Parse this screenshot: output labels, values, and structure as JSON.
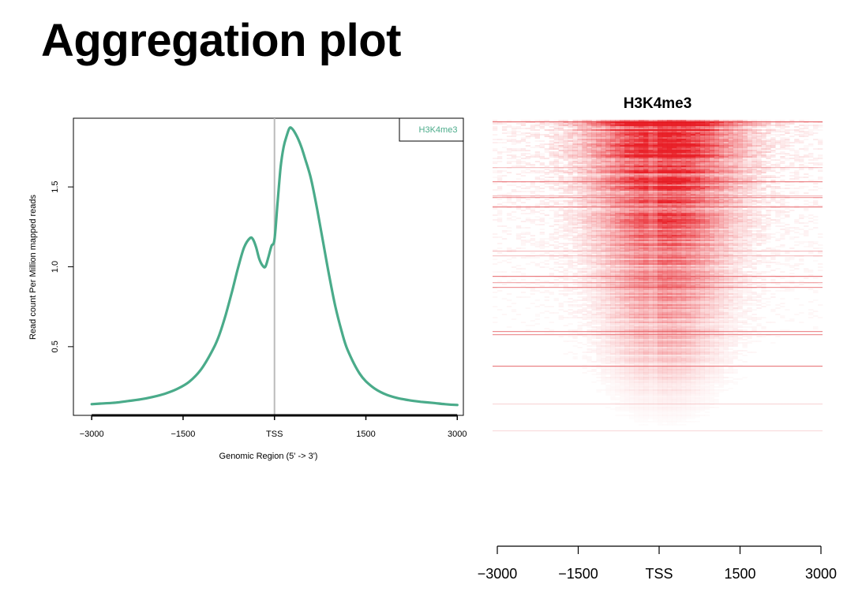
{
  "slide": {
    "title": "Aggregation plot"
  },
  "chart_data": [
    {
      "type": "line",
      "title": "",
      "xlabel": "Genomic Region (5' -> 3')",
      "ylabel": "Read count Per Million mapped reads",
      "xlim": [
        -3300,
        3100
      ],
      "ylim": [
        0.07,
        1.93
      ],
      "x_ticks": [
        -3000,
        -1500,
        0,
        1500,
        3000
      ],
      "x_tick_labels": [
        "−3000",
        "−1500",
        "TSS",
        "1500",
        "3000"
      ],
      "y_ticks": [
        0.5,
        1.0,
        1.5
      ],
      "y_tick_labels": [
        "0.5",
        "1.0",
        "1.5"
      ],
      "grid": false,
      "vline_x": 0,
      "legend_position": "top-right",
      "colors": {
        "series": "#4aab8a",
        "vline": "#bbbbbb"
      },
      "series": [
        {
          "name": "H3K4me3",
          "x": [
            -3000,
            -2800,
            -2600,
            -2400,
            -2200,
            -2000,
            -1800,
            -1600,
            -1400,
            -1200,
            -1000,
            -900,
            -800,
            -700,
            -600,
            -500,
            -400,
            -350,
            -300,
            -250,
            -200,
            -150,
            -100,
            -50,
            0,
            50,
            100,
            150,
            200,
            250,
            300,
            350,
            400,
            450,
            500,
            600,
            700,
            800,
            900,
            1000,
            1100,
            1200,
            1400,
            1600,
            1800,
            2000,
            2200,
            2400,
            2600,
            2800,
            3000
          ],
          "values": [
            0.14,
            0.145,
            0.15,
            0.16,
            0.17,
            0.185,
            0.205,
            0.235,
            0.28,
            0.36,
            0.49,
            0.58,
            0.7,
            0.84,
            0.99,
            1.12,
            1.18,
            1.17,
            1.12,
            1.05,
            1.01,
            1.0,
            1.06,
            1.13,
            1.17,
            1.4,
            1.62,
            1.75,
            1.82,
            1.87,
            1.86,
            1.83,
            1.79,
            1.74,
            1.68,
            1.55,
            1.36,
            1.15,
            0.94,
            0.75,
            0.6,
            0.48,
            0.33,
            0.25,
            0.205,
            0.18,
            0.165,
            0.155,
            0.148,
            0.14,
            0.135
          ]
        }
      ]
    },
    {
      "type": "heatmap",
      "title": "H3K4me3",
      "x_ticks": [
        -3000,
        -1500,
        0,
        1500,
        3000
      ],
      "x_tick_labels": [
        "−3000",
        "−1500",
        "TSS",
        "1500",
        "3000"
      ],
      "colors": {
        "low": "#ffffff",
        "high": "#e8141c"
      }
    }
  ]
}
